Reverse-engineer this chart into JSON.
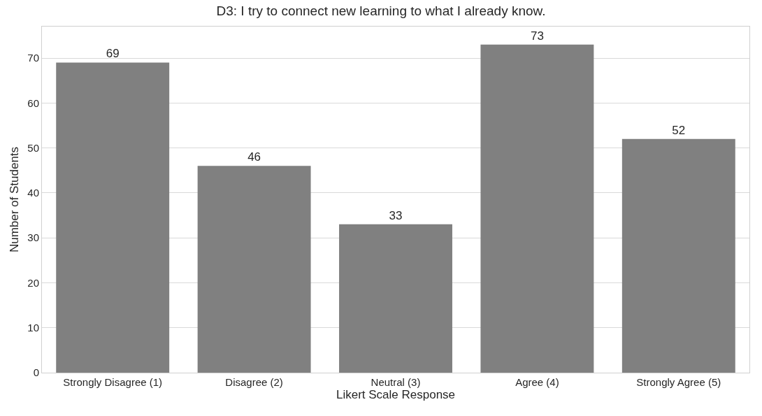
{
  "chart_data": {
    "type": "bar",
    "title": "D3: I try to connect new learning to what I already know.",
    "xlabel": "Likert Scale Response",
    "ylabel": "Number of Students",
    "categories": [
      "Strongly Disagree (1)",
      "Disagree (2)",
      "Neutral (3)",
      "Agree (4)",
      "Strongly Agree (5)"
    ],
    "values": [
      69,
      46,
      33,
      73,
      52
    ],
    "color": "#808080",
    "ylim": [
      0,
      77
    ],
    "yticks": [
      0,
      10,
      20,
      30,
      40,
      50,
      60,
      70
    ],
    "grid": "y",
    "data_labels": true
  }
}
